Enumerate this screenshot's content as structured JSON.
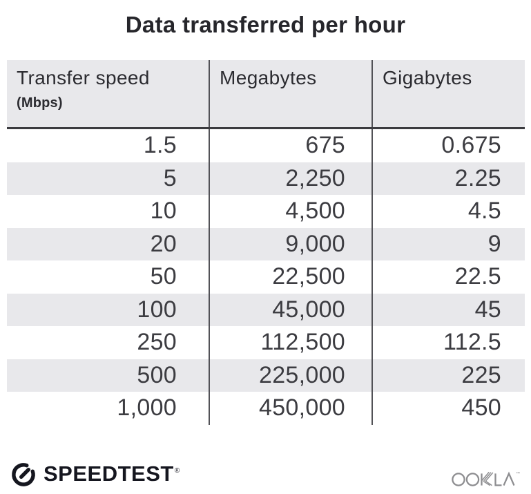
{
  "title": "Data transferred per hour",
  "table": {
    "columns": [
      {
        "label": "Transfer speed",
        "sublabel": "(Mbps)"
      },
      {
        "label": "Megabytes"
      },
      {
        "label": "Gigabytes"
      }
    ],
    "rows": [
      [
        "1.5",
        "675",
        "0.675"
      ],
      [
        "5",
        "2,250",
        "2.25"
      ],
      [
        "10",
        "4,500",
        "4.5"
      ],
      [
        "20",
        "9,000",
        "9"
      ],
      [
        "50",
        "22,500",
        "22.5"
      ],
      [
        "100",
        "45,000",
        "45"
      ],
      [
        "250",
        "112,500",
        "112.5"
      ],
      [
        "500",
        "225,000",
        "225"
      ],
      [
        "1,000",
        "450,000",
        "450"
      ]
    ]
  },
  "chart_data": {
    "type": "table",
    "title": "Data transferred per hour",
    "columns": [
      "Transfer speed (Mbps)",
      "Megabytes",
      "Gigabytes"
    ],
    "rows": [
      [
        1.5,
        675,
        0.675
      ],
      [
        5,
        2250,
        2.25
      ],
      [
        10,
        4500,
        4.5
      ],
      [
        20,
        9000,
        9
      ],
      [
        50,
        22500,
        22.5
      ],
      [
        100,
        45000,
        45
      ],
      [
        250,
        112500,
        112.5
      ],
      [
        500,
        225000,
        225
      ],
      [
        1000,
        450000,
        450
      ]
    ]
  },
  "footer": {
    "speedtest_label": "SPEEDTEST",
    "speedtest_trademark": "®",
    "ookla_trademark": "™"
  },
  "colors": {
    "title_text": "#26262b",
    "header_text": "#2b2b30",
    "cell_text": "#3c3c41",
    "header_bg": "#e8e8eb",
    "stripe_bg": "#e8e8eb",
    "divider": "#525257",
    "header_rule": "#3b3b3f",
    "speedtest_logo": "#15161f",
    "ookla_logo": "#8d8d90"
  }
}
